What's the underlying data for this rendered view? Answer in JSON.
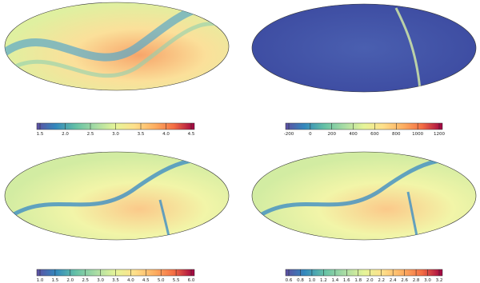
{
  "panels": [
    {
      "colorbar": {
        "ticks": [
          "1.5",
          "2.0",
          "2.5",
          "3.0",
          "3.5",
          "4.0",
          "4.5"
        ]
      }
    },
    {
      "colorbar": {
        "ticks": [
          "-200",
          "0",
          "200",
          "400",
          "600",
          "800",
          "1000",
          "1200"
        ]
      }
    },
    {
      "colorbar": {
        "ticks": [
          "1.0",
          "1.5",
          "2.0",
          "2.5",
          "3.0",
          "3.5",
          "4.0",
          "4.5",
          "5.0",
          "5.5",
          "6.0"
        ]
      }
    },
    {
      "colorbar": {
        "ticks": [
          "0.6",
          "0.8",
          "1.0",
          "1.2",
          "1.4",
          "1.6",
          "1.8",
          "2.0",
          "2.2",
          "2.4",
          "2.6",
          "2.8",
          "3.0",
          "3.2"
        ]
      }
    }
  ]
}
